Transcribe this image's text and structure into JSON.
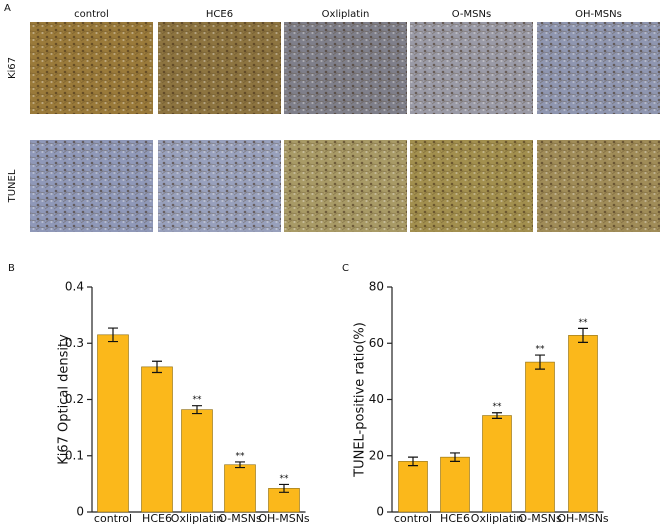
{
  "panel_a": {
    "label": "A",
    "columns": [
      "control",
      "HCE6",
      "Oxliplatin",
      "O-MSNs",
      "OH-MSNs"
    ],
    "rows": [
      "Ki67",
      "TUNEL"
    ]
  },
  "chart_data": [
    {
      "type": "bar",
      "panel_label": "B",
      "y_label": "Ki67 Optical density",
      "categories": [
        "control",
        "HCE6",
        "Oxliplatin",
        "O-MSNs",
        "OH-MSNs"
      ],
      "values": [
        0.315,
        0.258,
        0.182,
        0.084,
        0.042
      ],
      "errors": [
        0.012,
        0.01,
        0.007,
        0.005,
        0.007
      ],
      "significance": [
        null,
        null,
        "**",
        "**",
        "**"
      ],
      "color": "#fbb81b",
      "ylim": [
        0,
        0.4
      ],
      "yticks": [
        0,
        0.1,
        0.2,
        0.3,
        0.4
      ]
    },
    {
      "type": "bar",
      "panel_label": "C",
      "y_label": "TUNEL-positive ratio(%)",
      "categories": [
        "control",
        "HCE6",
        "Oxliplatin",
        "O-MSNs",
        "OH-MSNs"
      ],
      "values": [
        18,
        19.5,
        34.3,
        53.3,
        62.8
      ],
      "errors": [
        1.5,
        1.5,
        1,
        2.5,
        2.5
      ],
      "significance": [
        null,
        null,
        "**",
        "**",
        "**"
      ],
      "color": "#fbb81b",
      "ylim": [
        0,
        80
      ],
      "yticks": [
        0,
        20,
        40,
        60,
        80
      ]
    }
  ]
}
